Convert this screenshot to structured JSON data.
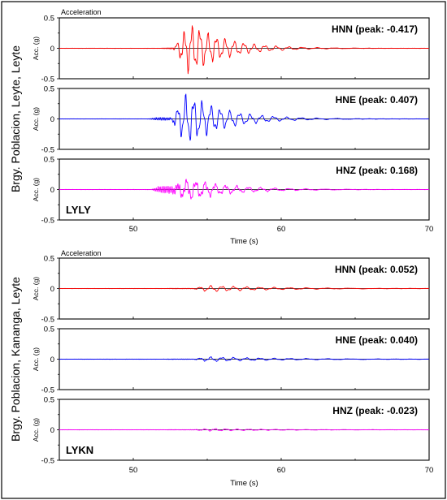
{
  "chart_data": {
    "type": "line",
    "x_axis": {
      "label": "Time (s)",
      "range": [
        45,
        70
      ],
      "ticks": [
        50,
        60,
        70
      ]
    },
    "y_axis": {
      "label": "Acc. (g)",
      "range": [
        -0.5,
        0.5
      ],
      "ticks": [
        0.5,
        0,
        -0.5
      ],
      "tick_labels": [
        "0.5",
        "0",
        "-0.5"
      ]
    },
    "grid": false,
    "groups": [
      {
        "site": "Brgy. Poblacion, Leyte, Leyte",
        "station": "LYLY",
        "header": "Acceleration",
        "panels": [
          {
            "component": "HNN",
            "peak_label": "HNN (peak: -0.417)",
            "peak": -0.417,
            "color": "#ff0000",
            "onset": 51.8,
            "p_amp": 0.012,
            "s_time": 53.2,
            "s_amp": 0.417,
            "decay": 2.4,
            "freq": 2.0
          },
          {
            "component": "HNE",
            "peak_label": "HNE (peak: 0.407)",
            "peak": 0.407,
            "color": "#0000ff",
            "onset": 51.0,
            "p_amp": 0.025,
            "s_time": 53.0,
            "s_amp": 0.407,
            "decay": 2.6,
            "freq": 1.9
          },
          {
            "component": "HNZ",
            "peak_label": "HNZ (peak: 0.168)",
            "peak": 0.168,
            "color": "#ff00ff",
            "onset": 51.2,
            "p_amp": 0.06,
            "s_time": 53.0,
            "s_amp": 0.168,
            "decay": 3.0,
            "freq": 1.7
          }
        ]
      },
      {
        "site": "Brgy. Poblacion, Kananga, Leyte",
        "station": "LYKN",
        "header": "Acceleration",
        "panels": [
          {
            "component": "HNN",
            "peak_label": "HNN (peak: 0.052)",
            "peak": 0.052,
            "color": "#ff0000",
            "onset": 52.0,
            "p_amp": 0.004,
            "s_time": 54.5,
            "s_amp": 0.052,
            "decay": 4.5,
            "freq": 1.4
          },
          {
            "component": "HNE",
            "peak_label": "HNE (peak: 0.040)",
            "peak": 0.04,
            "color": "#0000ff",
            "onset": 52.0,
            "p_amp": 0.004,
            "s_time": 54.5,
            "s_amp": 0.04,
            "decay": 5.0,
            "freq": 1.4
          },
          {
            "component": "HNZ",
            "peak_label": "HNZ (peak: -0.023)",
            "peak": -0.023,
            "color": "#ff00ff",
            "onset": 52.0,
            "p_amp": 0.003,
            "s_time": 54.5,
            "s_amp": 0.023,
            "decay": 4.5,
            "freq": 1.5
          }
        ]
      }
    ]
  }
}
